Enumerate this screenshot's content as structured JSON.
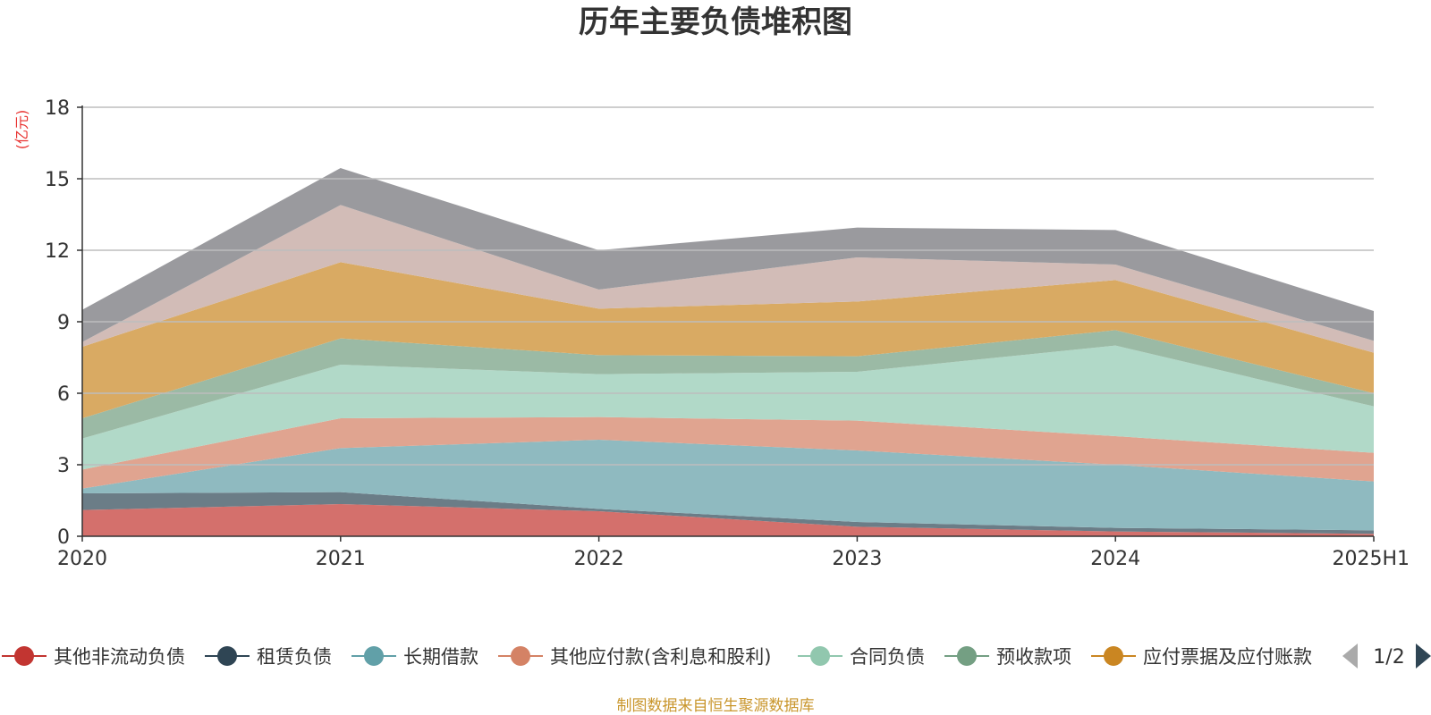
{
  "chart_data": {
    "type": "area",
    "stacked": true,
    "title": "历年主要负债堆积图",
    "y_unit": "(亿元)",
    "ylim": [
      0,
      18
    ],
    "y_ticks": [
      0,
      3,
      6,
      9,
      12,
      15,
      18
    ],
    "grid": true,
    "legend_position": "bottom",
    "x": [
      "2020",
      "2021",
      "2022",
      "2023",
      "2024",
      "2025H1"
    ],
    "series": [
      {
        "name": "其他非流动负债",
        "color": "#d4706c",
        "legend_color": "#c23531",
        "values": [
          1.1,
          1.35,
          1.05,
          0.4,
          0.2,
          0.1
        ]
      },
      {
        "name": "租赁负债",
        "color": "#6b7d87",
        "legend_color": "#2f4554",
        "values": [
          0.7,
          0.5,
          0.1,
          0.2,
          0.15,
          0.15
        ]
      },
      {
        "name": "长期借款",
        "color": "#8fbac0",
        "legend_color": "#61a0a8",
        "values": [
          0.2,
          1.85,
          2.9,
          3.0,
          2.65,
          2.05
        ]
      },
      {
        "name": "其他应付款(含利息和股利)",
        "color": "#e0a490",
        "legend_color": "#d48265",
        "values": [
          0.8,
          1.25,
          0.95,
          1.25,
          1.2,
          1.2
        ]
      },
      {
        "name": "合同负债",
        "color": "#b1d9c8",
        "legend_color": "#91c7ae",
        "values": [
          1.3,
          2.25,
          1.8,
          2.05,
          3.8,
          1.95
        ]
      },
      {
        "name": "预收款项",
        "color": "#9bbaa5",
        "legend_color": "#749f83",
        "values": [
          0.85,
          1.1,
          0.8,
          0.65,
          0.65,
          0.55
        ]
      },
      {
        "name": "应付票据及应付账款",
        "color": "#d9aa63",
        "legend_color": "#ca8622",
        "values": [
          3.0,
          3.2,
          1.95,
          2.3,
          2.1,
          1.7
        ]
      },
      {
        "name": "",
        "color": "#d2bcb7",
        "values": [
          0.2,
          2.4,
          0.8,
          1.85,
          0.65,
          0.5
        ]
      },
      {
        "name": "",
        "color": "#9a9a9e",
        "values": [
          1.35,
          1.55,
          1.65,
          1.25,
          1.45,
          1.25
        ]
      }
    ]
  },
  "legend": {
    "page_label": "1/2",
    "prev_icon": "triangle-left-icon",
    "next_icon": "triangle-right-icon"
  },
  "source_text": "制图数据来自恒生聚源数据库"
}
